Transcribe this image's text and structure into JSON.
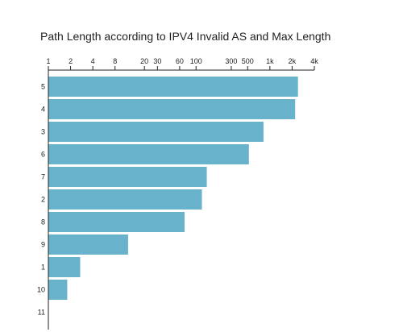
{
  "chart_data": {
    "type": "bar",
    "orientation": "horizontal",
    "title": "Path Length according to IPV4 Invalid AS and Max Length",
    "xlabel": "",
    "ylabel": "",
    "x_scale": "log",
    "x_axis_position": "top",
    "xlim": [
      1,
      4000
    ],
    "x_ticks": [
      1,
      2,
      4,
      8,
      20,
      30,
      60,
      100,
      300,
      500,
      1000,
      2000,
      4000
    ],
    "x_tick_labels": [
      "1",
      "2",
      "4",
      "8",
      "20",
      "30",
      "60",
      "100",
      "300",
      "500",
      "1k",
      "2k",
      "4k"
    ],
    "categories": [
      "5",
      "4",
      "3",
      "6",
      "7",
      "2",
      "8",
      "9",
      "1",
      "10",
      "11"
    ],
    "values": [
      2400,
      2200,
      820,
      520,
      140,
      120,
      70,
      12,
      2.7,
      1.8,
      1
    ],
    "bar_color": "#68b3cb",
    "grid": false,
    "legend": "none"
  }
}
